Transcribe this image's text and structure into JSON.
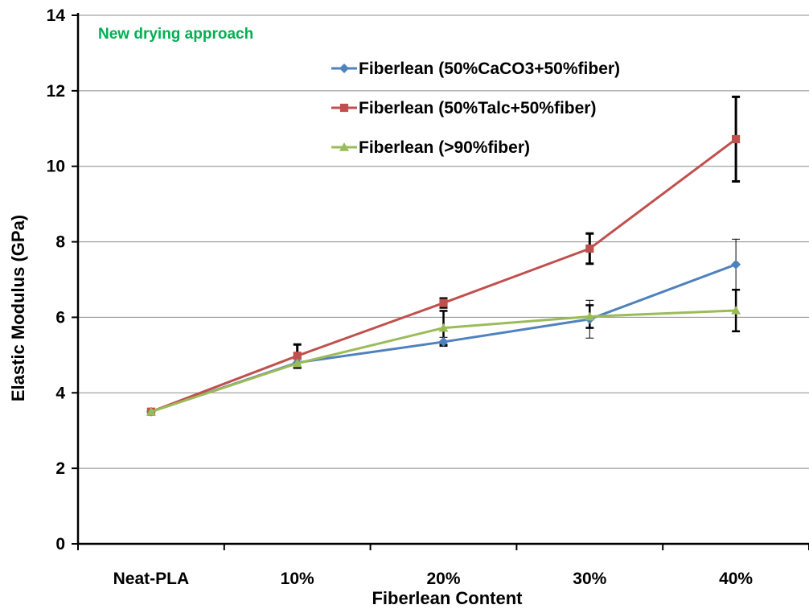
{
  "chart_data": {
    "type": "line",
    "title": "",
    "xlabel": "Fiberlean Content",
    "ylabel": "Elastic Modulus (GPa)",
    "categories": [
      "Neat-PLA",
      "10%",
      "20%",
      "30%",
      "40%"
    ],
    "ylim": [
      0,
      14
    ],
    "yticks": [
      0,
      2,
      4,
      6,
      8,
      10,
      12,
      14
    ],
    "grid": "horizontal",
    "legend_position": "top-right",
    "annotation": {
      "text": "New drying approach",
      "color": "#00B050"
    },
    "series": [
      {
        "name": "Fiberlean (50%CaCO3+50%fiber)",
        "color": "#4F81BD",
        "marker": "diamond",
        "values": [
          3.5,
          4.8,
          5.35,
          5.95,
          7.4
        ],
        "errors": [
          0,
          0.15,
          0.12,
          0.5,
          0.67
        ]
      },
      {
        "name": "Fiberlean (50%Talc+50%fiber)",
        "color": "#C0504D",
        "marker": "square",
        "values": [
          3.5,
          4.98,
          6.38,
          7.82,
          10.72
        ],
        "errors": [
          0,
          0.3,
          0.12,
          0.4,
          1.12
        ]
      },
      {
        "name": "Fiberlean (>90%fiber)",
        "color": "#9BBB59",
        "marker": "triangle",
        "values": [
          3.5,
          4.78,
          5.72,
          6.02,
          6.18
        ],
        "errors": [
          0,
          0.12,
          0.45,
          0.3,
          0.55
        ]
      }
    ]
  }
}
